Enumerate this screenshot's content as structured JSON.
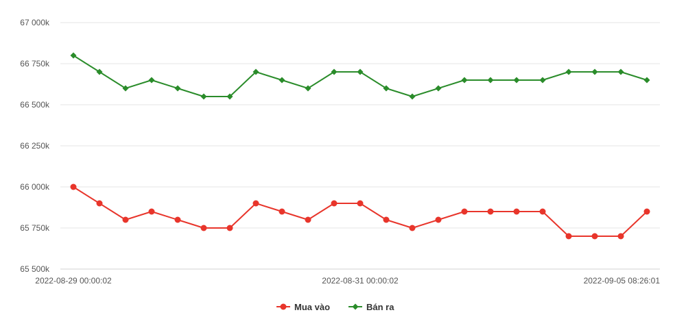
{
  "chart_data": {
    "type": "line",
    "title": "",
    "xlabel": "",
    "ylabel": "",
    "ylim": [
      65500,
      67000
    ],
    "y_ticks": [
      65500,
      65750,
      66000,
      66250,
      66500,
      66750,
      67000
    ],
    "y_tick_labels": [
      "65 500k",
      "65 750k",
      "66 000k",
      "66 250k",
      "66 500k",
      "66 750k",
      "67 000k"
    ],
    "x_tick_labels": [
      {
        "index": 0,
        "label": "2022-08-29 00:00:02"
      },
      {
        "index": 11,
        "label": "2022-08-31 00:00:02"
      },
      {
        "index": 22,
        "label": "2022-09-05 08:26:01"
      }
    ],
    "grid": true,
    "legend_position": "bottom",
    "series": [
      {
        "name": "Mua vào",
        "color": "#e8352b",
        "marker": "circle",
        "values": [
          66000,
          65900,
          65800,
          65850,
          65800,
          65750,
          65750,
          65900,
          65850,
          65800,
          65900,
          65900,
          65800,
          65750,
          65800,
          65850,
          65850,
          65850,
          65850,
          65700,
          65700,
          65700,
          65850
        ]
      },
      {
        "name": "Bán ra",
        "color": "#2a8c2a",
        "marker": "diamond",
        "values": [
          66800,
          66700,
          66600,
          66650,
          66600,
          66550,
          66550,
          66700,
          66650,
          66600,
          66700,
          66700,
          66600,
          66550,
          66600,
          66650,
          66650,
          66650,
          66650,
          66700,
          66700,
          66700,
          66650
        ]
      }
    ]
  }
}
